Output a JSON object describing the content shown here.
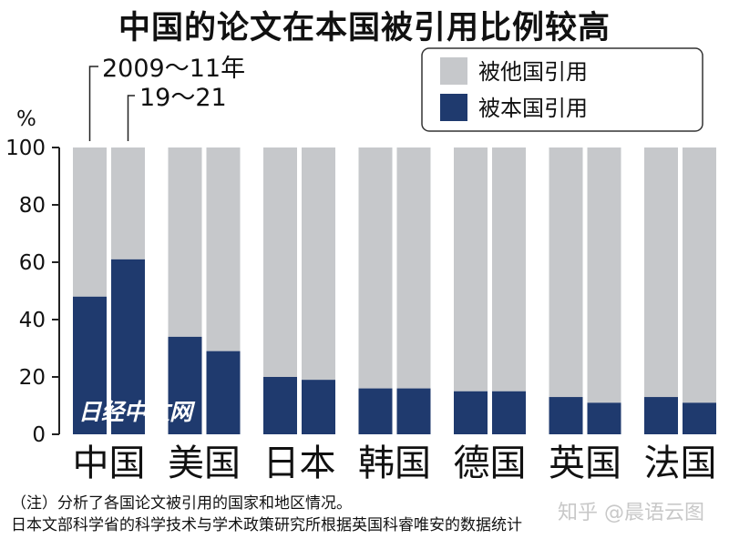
{
  "chart_data": {
    "type": "bar",
    "stacked": true,
    "title": "中国的论文在本国被引用比例较高",
    "ylabel": "%",
    "ylim": [
      0,
      100
    ],
    "yticks": [
      0,
      20,
      40,
      60,
      80,
      100
    ],
    "categories": [
      "中国",
      "美国",
      "日本",
      "韩国",
      "德国",
      "英国",
      "法国"
    ],
    "periods": [
      "2009～11年",
      "19～21"
    ],
    "series": [
      {
        "name": "被本国引用",
        "color": "#1f3a6e",
        "values": [
          [
            48,
            61
          ],
          [
            34,
            29
          ],
          [
            20,
            19
          ],
          [
            16,
            16
          ],
          [
            15,
            15
          ],
          [
            13,
            11
          ],
          [
            13,
            11
          ]
        ]
      },
      {
        "name": "被他国引用",
        "color": "#c6c8cb",
        "values": [
          [
            52,
            39
          ],
          [
            66,
            71
          ],
          [
            80,
            81
          ],
          [
            84,
            84
          ],
          [
            85,
            85
          ],
          [
            87,
            89
          ],
          [
            87,
            89
          ]
        ]
      }
    ],
    "legend_position": "top-right",
    "grid": false
  },
  "watermark": "日经中文网",
  "note": "（注）分析了各国论文被引用的国家和地区情况。",
  "source": "日本文部科学省的科学技术与学术政策研究所根据英国科睿唯安的数据统计",
  "zhihu": "知乎 @晨语云图"
}
